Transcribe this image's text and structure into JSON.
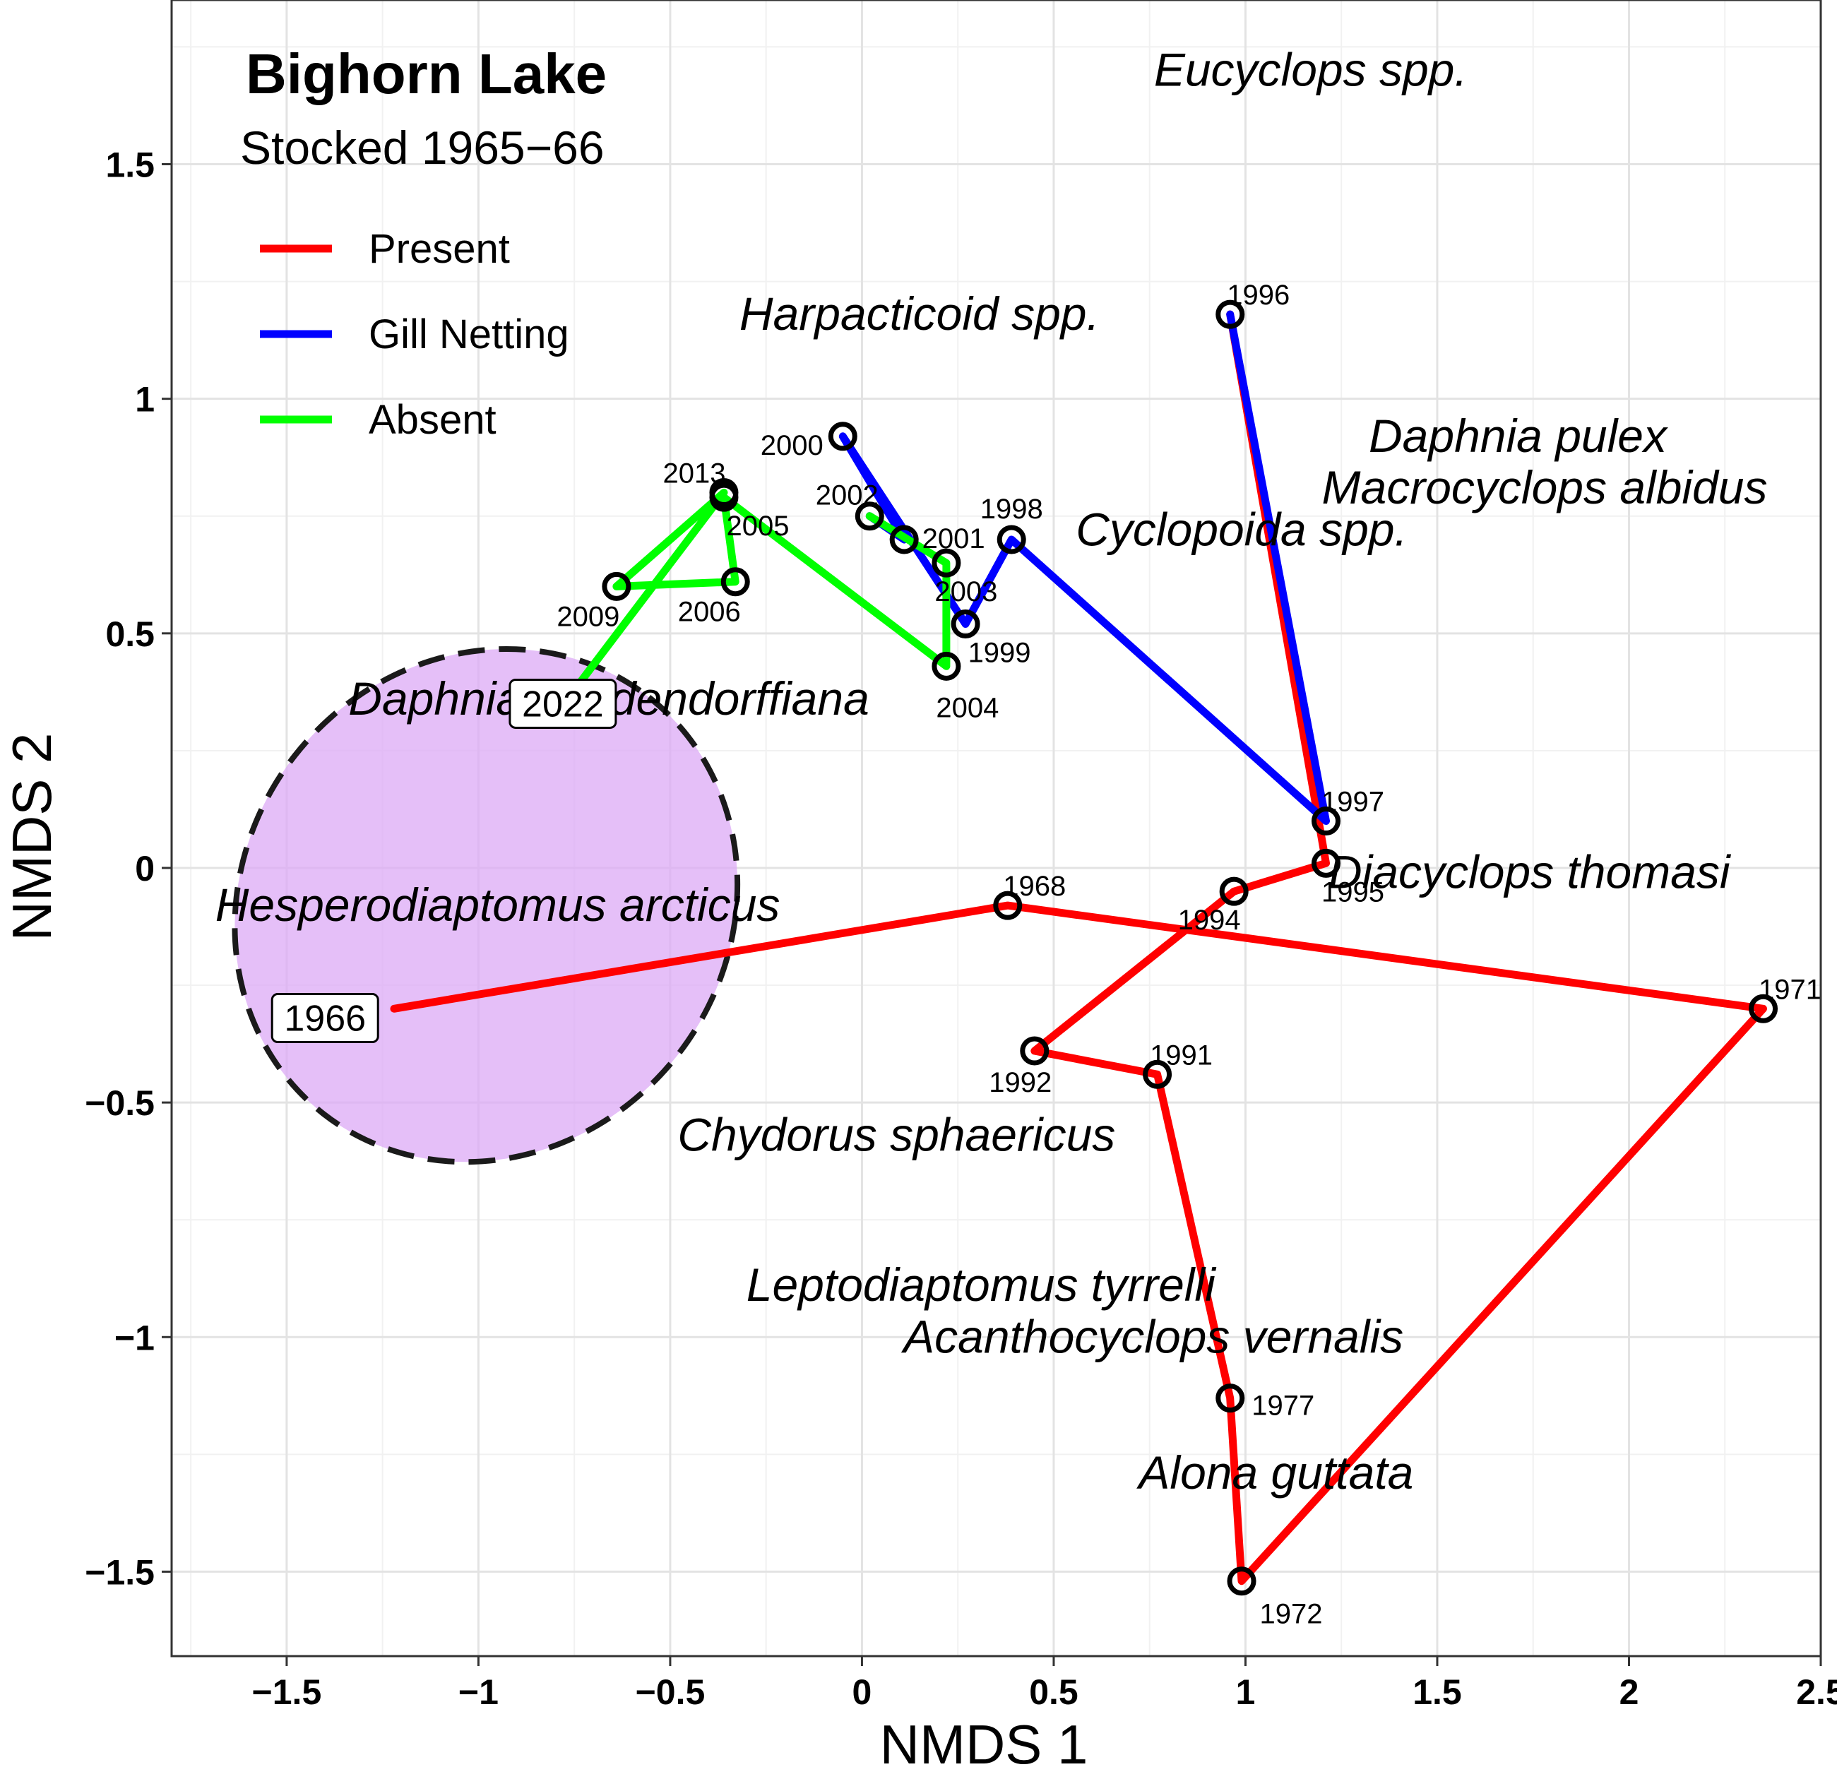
{
  "title": "Bighorn Lake",
  "subtitle": "Stocked 1965−66",
  "chart_data": {
    "type": "line",
    "xlabel": "NMDS 1",
    "ylabel": "NMDS 2",
    "xlim": [
      -1.8,
      2.5
    ],
    "ylim": [
      -1.68,
      1.85
    ],
    "xticks": [
      -1.5,
      -1,
      -0.5,
      0,
      0.5,
      1,
      1.5,
      2,
      2.5
    ],
    "xtick_labels": [
      "−1.5",
      "−1",
      "−0.5",
      "0",
      "0.5",
      "1",
      "1.5",
      "2",
      "2.5"
    ],
    "yticks": [
      -1.5,
      -1,
      -0.5,
      0,
      0.5,
      1,
      1.5
    ],
    "ytick_labels": [
      "−1.5",
      "−1",
      "−0.5",
      "0",
      "0.5",
      "1",
      "1.5"
    ],
    "grid": true,
    "legend": {
      "position": "top-left",
      "entries": [
        {
          "label": "Present",
          "color": "#ff0000"
        },
        {
          "label": "Gill Netting",
          "color": "#0000ff"
        },
        {
          "label": "Absent",
          "color": "#00ff00"
        }
      ]
    },
    "series": [
      {
        "name": "Present",
        "color": "#ff0000",
        "points": [
          {
            "year": "1966",
            "x": -1.22,
            "y": -0.3
          },
          {
            "year": "1968",
            "x": 0.38,
            "y": -0.08
          },
          {
            "year": "1971",
            "x": 2.35,
            "y": -0.3
          },
          {
            "year": "1972",
            "x": 0.99,
            "y": -1.52
          },
          {
            "year": "1977",
            "x": 0.96,
            "y": -1.13
          },
          {
            "year": "1991",
            "x": 0.77,
            "y": -0.44
          },
          {
            "year": "1992",
            "x": 0.45,
            "y": -0.39
          },
          {
            "year": "1994",
            "x": 0.97,
            "y": -0.05
          },
          {
            "year": "1995",
            "x": 1.21,
            "y": 0.01
          },
          {
            "year": "1996",
            "x": 0.96,
            "y": 1.18
          }
        ]
      },
      {
        "name": "Gill Netting",
        "color": "#0000ff",
        "points": [
          {
            "year": "1996",
            "x": 0.96,
            "y": 1.18
          },
          {
            "year": "1997",
            "x": 1.21,
            "y": 0.1
          },
          {
            "year": "1998",
            "x": 0.39,
            "y": 0.7
          },
          {
            "year": "1999",
            "x": 0.27,
            "y": 0.52
          },
          {
            "year": "2000",
            "x": -0.05,
            "y": 0.92
          },
          {
            "year": "2001",
            "x": 0.11,
            "y": 0.7
          },
          {
            "year": "2002",
            "x": 0.02,
            "y": 0.75
          }
        ]
      },
      {
        "name": "Absent",
        "color": "#00ff00",
        "points": [
          {
            "year": "2002",
            "x": 0.02,
            "y": 0.75
          },
          {
            "year": "2003",
            "x": 0.22,
            "y": 0.65
          },
          {
            "year": "2004",
            "x": 0.22,
            "y": 0.43
          },
          {
            "year": "2005",
            "x": -0.36,
            "y": 0.79
          },
          {
            "year": "2006",
            "x": -0.33,
            "y": 0.61
          },
          {
            "year": "2009",
            "x": -0.64,
            "y": 0.6
          },
          {
            "year": "2013",
            "x": -0.36,
            "y": 0.8
          },
          {
            "year": "2022",
            "x": -0.74,
            "y": 0.39
          }
        ]
      }
    ],
    "boxed_labels": [
      {
        "text": "1966",
        "x": -1.4,
        "y": -0.32
      },
      {
        "text": "2022",
        "x": -0.78,
        "y": 0.35
      }
    ],
    "ellipse": {
      "cx": -0.98,
      "cy": -0.08,
      "rx": 0.62,
      "ry": 0.57,
      "rotation_deg": 52,
      "fill": "#dcaaf5",
      "stroke": "#1a1a1a"
    },
    "species_labels": [
      {
        "text": "Eucyclops spp.",
        "x": 1.17,
        "y": 1.7
      },
      {
        "text": "Harpacticoid spp.",
        "x": 0.15,
        "y": 1.18
      },
      {
        "text": "Daphnia pulex",
        "x": 1.71,
        "y": 0.92
      },
      {
        "text": "Macrocyclops albidus",
        "x": 1.78,
        "y": 0.81
      },
      {
        "text": "Cyclopoida spp.",
        "x": 0.99,
        "y": 0.72
      },
      {
        "text": "Daphnia middendorffiana",
        "x": -0.66,
        "y": 0.36
      },
      {
        "text": "Diacyclops thomasi",
        "x": 1.74,
        "y": -0.01
      },
      {
        "text": "Hesperodiaptomus arcticus",
        "x": -0.95,
        "y": -0.08
      },
      {
        "text": "Chydorus sphaericus",
        "x": 0.09,
        "y": -0.57
      },
      {
        "text": "Leptodiaptomus tyrrelli",
        "x": 0.31,
        "y": -0.89
      },
      {
        "text": "Acanthocyclops vernalis",
        "x": 0.76,
        "y": -1.0
      },
      {
        "text": "Alona guttata",
        "x": 1.08,
        "y": -1.29
      }
    ]
  }
}
